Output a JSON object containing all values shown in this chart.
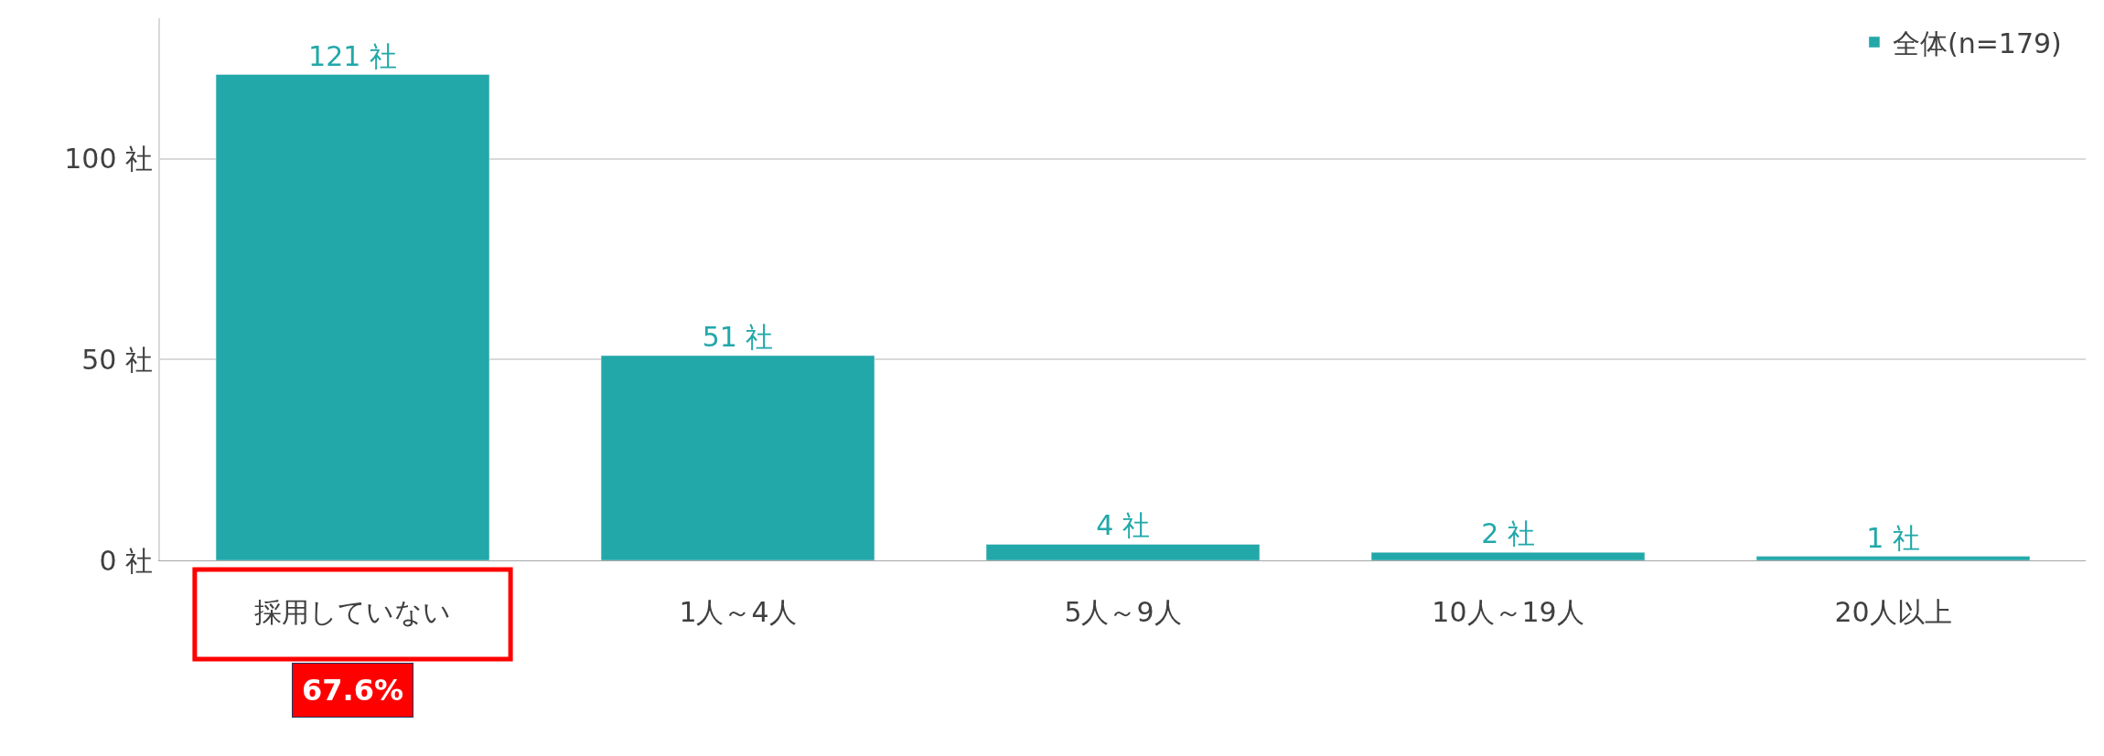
{
  "chart_data": {
    "type": "bar",
    "categories": [
      "採用していない",
      "1人～4人",
      "5人～9人",
      "10人～19人",
      "20人以上"
    ],
    "series": [
      {
        "name": "全体(n=179)",
        "color": "#22a8a9",
        "values": [
          121,
          51,
          4,
          2,
          1
        ],
        "value_labels": [
          "121 社",
          "51 社",
          "4 社",
          "2 社",
          "1 社"
        ]
      }
    ],
    "yticks": [
      {
        "value": 0,
        "label": "0 社"
      },
      {
        "value": 50,
        "label": "50 社"
      },
      {
        "value": 100,
        "label": "100 社"
      }
    ],
    "ylim": [
      0,
      135
    ],
    "grid": "y",
    "legend": "top right",
    "annotations": [
      "67.6%"
    ]
  }
}
